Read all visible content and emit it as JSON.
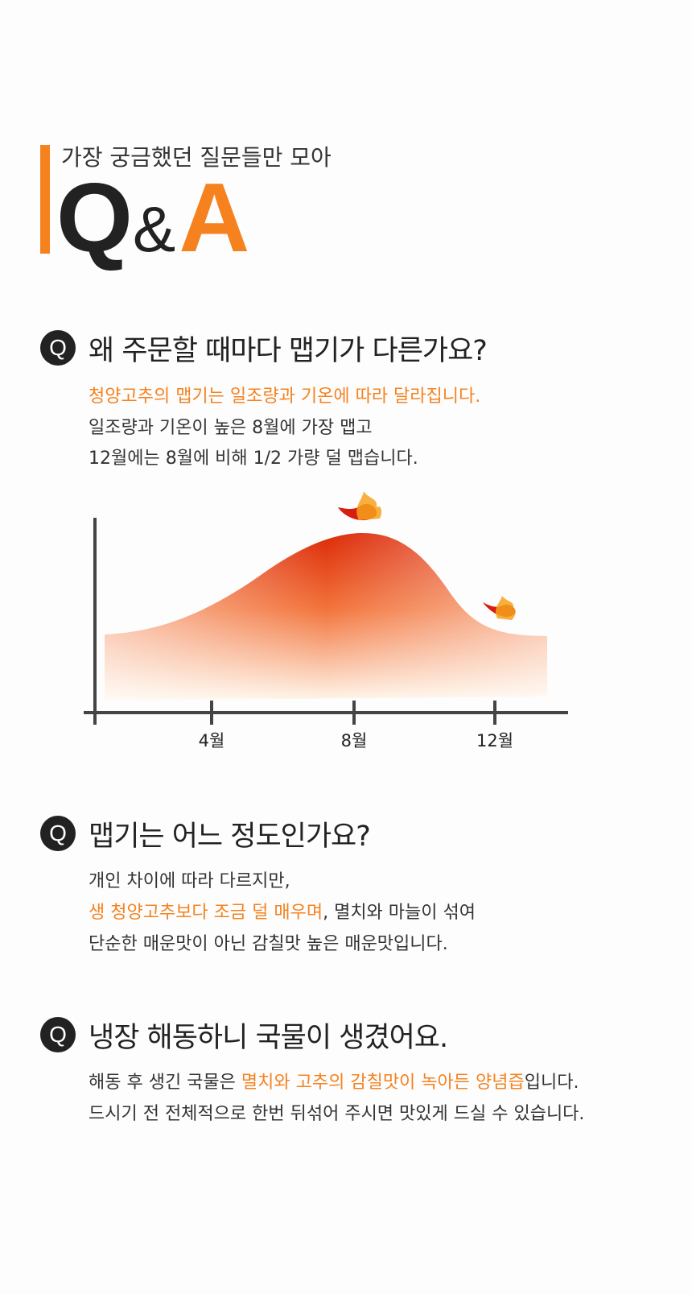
{
  "header": {
    "subtitle": "가장 궁금했던 질문들만 모아",
    "title_q": "Q",
    "title_amp": "&",
    "title_a": "A"
  },
  "faq": [
    {
      "badge": "Q",
      "question": "왜 주문할 때마다 맵기가 다른가요?",
      "answer": [
        [
          {
            "text": "청양고추의 맵기는 일조량과 기온에 따라 달라집니다.",
            "highlight": true
          }
        ],
        [
          {
            "text": "일조량과 기온이 높은 8월에 가장 맵고",
            "highlight": false
          }
        ],
        [
          {
            "text": "12월에는 8월에 비해 1/2 가량 덜 맵습니다.",
            "highlight": false
          }
        ]
      ]
    },
    {
      "badge": "Q",
      "question": "맵기는 어느 정도인가요?",
      "answer": [
        [
          {
            "text": "개인 차이에 따라 다르지만,",
            "highlight": false
          }
        ],
        [
          {
            "text": "생 청양고추보다 조금 덜 매우며",
            "highlight": true
          },
          {
            "text": ", 멸치와 마늘이 섞여",
            "highlight": false
          }
        ],
        [
          {
            "text": "단순한 매운맛이 아닌 감칠맛 높은 매운맛입니다.",
            "highlight": false
          }
        ]
      ]
    },
    {
      "badge": "Q",
      "question": "냉장 해동하니 국물이 생겼어요.",
      "answer": [
        [
          {
            "text": "해동 후 생긴 국물은 ",
            "highlight": false
          },
          {
            "text": "멸치와 고추의 감칠맛이 녹아든 양념즙",
            "highlight": true
          },
          {
            "text": "입니다.",
            "highlight": false
          }
        ],
        [
          {
            "text": "드시기 전 전체적으로 한번 뒤섞어 주시면 맛있게 드실 수 있습니다.",
            "highlight": false
          }
        ]
      ]
    }
  ],
  "chart": {
    "x_labels": [
      "4월",
      "8월",
      "12월"
    ]
  }
}
